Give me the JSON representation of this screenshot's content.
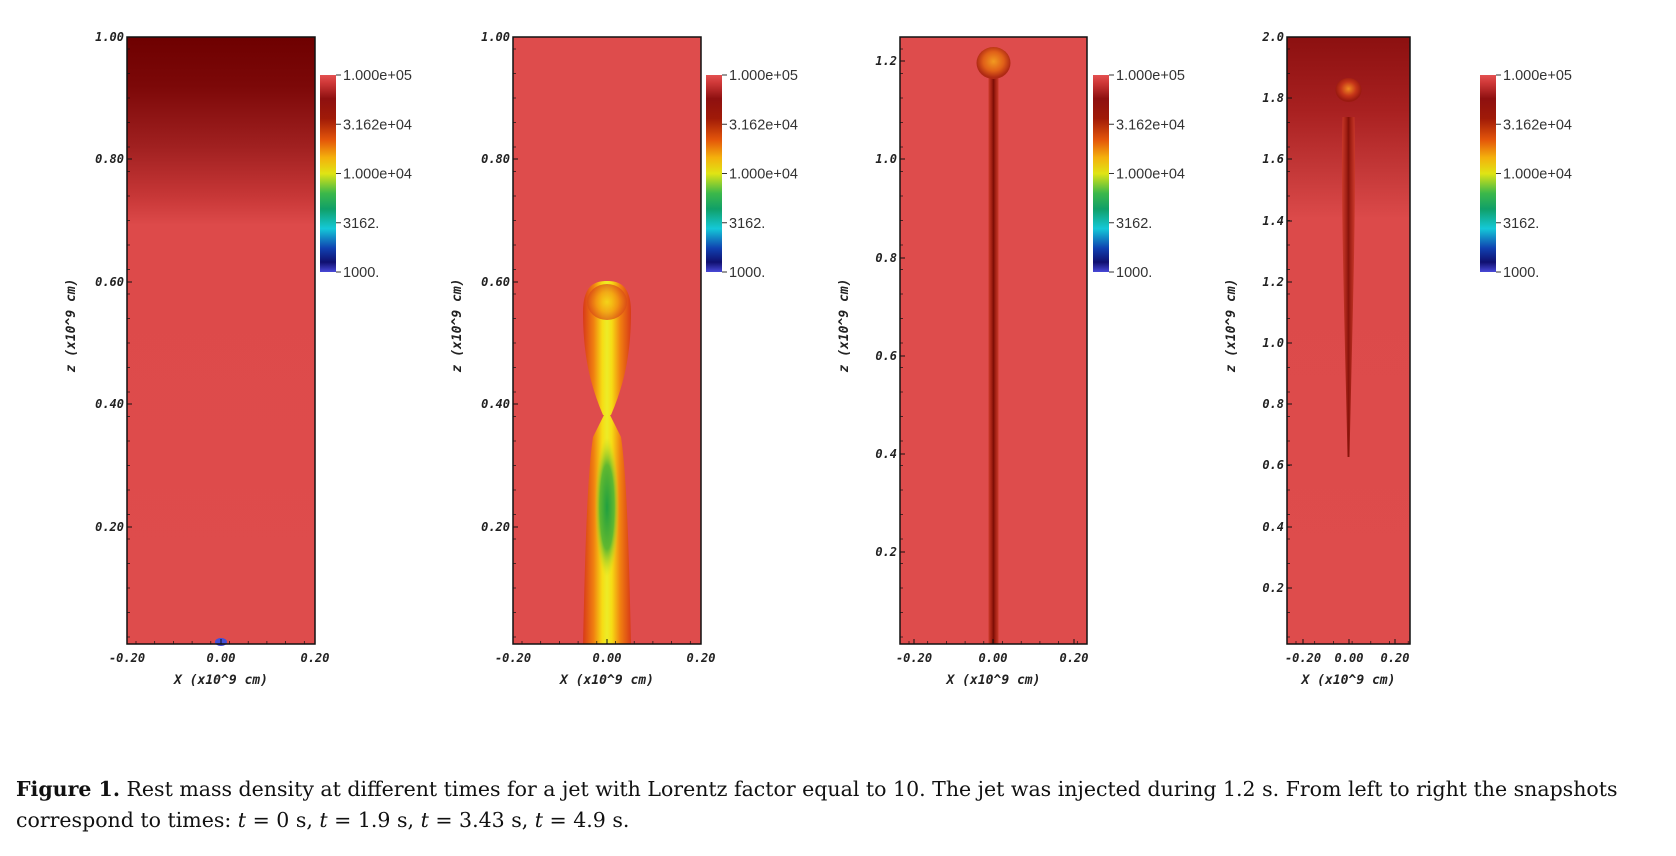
{
  "figure": {
    "colorbar": {
      "tick_labels": [
        "1.000e+05",
        "3.162e+04",
        "1.000e+04",
        "3162.",
        "1000."
      ]
    },
    "x_axis_label": "X (x10^9 cm)",
    "y_axis_label": "z (x10^9 cm)",
    "panels": [
      {
        "id": "t0",
        "x_ticks": [
          "-0.20",
          "0.00",
          "0.20"
        ],
        "y_ticks": [
          "1.00",
          "0.80",
          "0.60",
          "0.40",
          "0.20"
        ]
      },
      {
        "id": "t1.9",
        "x_ticks": [
          "-0.20",
          "0.00",
          "0.20"
        ],
        "y_ticks": [
          "1.00",
          "0.80",
          "0.60",
          "0.40",
          "0.20"
        ]
      },
      {
        "id": "t3.43",
        "x_ticks": [
          "-0.20",
          "0.00",
          "0.20"
        ],
        "y_ticks": [
          "1.2",
          "1.0",
          "0.8",
          "0.6",
          "0.4",
          "0.2"
        ]
      },
      {
        "id": "t4.9",
        "x_ticks": [
          "-0.20",
          "0.00",
          "0.20"
        ],
        "y_ticks": [
          "2.0",
          "1.8",
          "1.6",
          "1.4",
          "1.2",
          "1.0",
          "0.8",
          "0.6",
          "0.4",
          "0.2"
        ]
      }
    ]
  },
  "caption": {
    "label": "Figure 1.",
    "text_part1": " Rest mass density at different times for a jet with Lorentz factor equal to 10. The jet was injected during 1.2 s. From left to right the snapshots correspond to times: ",
    "t_symbol": "t",
    "eq": " = ",
    "time1": "0 s",
    "time2": "1.9 s",
    "time3": "3.43 s",
    "time4": "4.9 s",
    "sep": ", ",
    "end": "."
  }
}
